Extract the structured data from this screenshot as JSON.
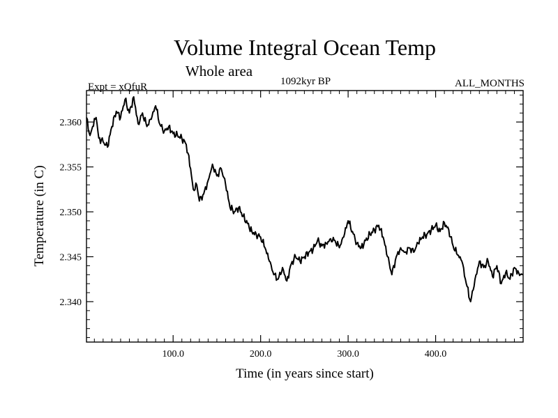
{
  "chart_data": {
    "type": "line",
    "title": "Volume Integral Ocean Temp",
    "subtitle": "Whole area",
    "header_left": "Expt = xQfuR",
    "header_center": "1092kyr BP",
    "header_right": "ALL_MONTHS",
    "xlabel": "Time (in years since start)",
    "ylabel": "Temperature (in C)",
    "xlim": [
      1,
      500
    ],
    "ylim": [
      2.3355,
      2.3635
    ],
    "xticks": [
      100,
      200,
      300,
      400
    ],
    "xtick_labels": [
      "100.0",
      "200.0",
      "300.0",
      "400.0"
    ],
    "yticks": [
      2.34,
      2.345,
      2.35,
      2.355,
      2.36
    ],
    "ytick_labels": [
      "2.340",
      "2.345",
      "2.350",
      "2.355",
      "2.360"
    ],
    "grid": false,
    "series": [
      {
        "name": "Volume integral ocean temperature",
        "x": [
          1,
          5,
          8,
          12,
          15,
          20,
          25,
          30,
          35,
          40,
          45,
          50,
          55,
          60,
          65,
          70,
          75,
          80,
          85,
          90,
          95,
          100,
          105,
          110,
          115,
          120,
          123,
          127,
          130,
          135,
          140,
          145,
          150,
          155,
          160,
          165,
          170,
          175,
          180,
          185,
          190,
          195,
          200,
          205,
          210,
          215,
          220,
          225,
          230,
          235,
          240,
          245,
          250,
          255,
          260,
          265,
          270,
          275,
          280,
          285,
          290,
          295,
          300,
          305,
          310,
          315,
          320,
          325,
          330,
          335,
          340,
          345,
          350,
          355,
          360,
          365,
          370,
          375,
          380,
          385,
          390,
          395,
          400,
          405,
          410,
          415,
          420,
          425,
          430,
          435,
          440,
          445,
          450,
          455,
          460,
          465,
          470,
          475,
          480,
          485,
          490,
          495,
          500
        ],
        "values": [
          2.3605,
          2.3585,
          2.3595,
          2.3605,
          2.3582,
          2.3578,
          2.3572,
          2.3595,
          2.3612,
          2.3605,
          2.3625,
          2.361,
          2.3628,
          2.3598,
          2.361,
          2.3595,
          2.3603,
          2.3618,
          2.3597,
          2.359,
          2.3595,
          2.3587,
          2.3585,
          2.3582,
          2.3575,
          2.3548,
          2.3525,
          2.353,
          2.3512,
          2.352,
          2.3535,
          2.3553,
          2.354,
          2.3548,
          2.353,
          2.3505,
          2.35,
          2.3505,
          2.3495,
          2.3487,
          2.3478,
          2.3475,
          2.3472,
          2.346,
          2.3445,
          2.343,
          2.3425,
          2.3438,
          2.3423,
          2.3442,
          2.345,
          2.3445,
          2.345,
          2.3455,
          2.3458,
          2.3468,
          2.3462,
          2.3465,
          2.347,
          2.3468,
          2.346,
          2.3472,
          2.349,
          2.3478,
          2.3465,
          2.346,
          2.3468,
          2.3475,
          2.348,
          2.3485,
          2.3472,
          2.345,
          2.343,
          2.345,
          2.346,
          2.3455,
          2.346,
          2.3455,
          2.3465,
          2.3472,
          2.3475,
          2.348,
          2.3485,
          2.3478,
          2.3488,
          2.348,
          2.3462,
          2.3452,
          2.3445,
          2.342,
          2.34,
          2.3425,
          2.3445,
          2.3438,
          2.3445,
          2.3428,
          2.344,
          2.342,
          2.3432,
          2.3425,
          2.3438,
          2.3432,
          2.343
        ]
      }
    ]
  }
}
